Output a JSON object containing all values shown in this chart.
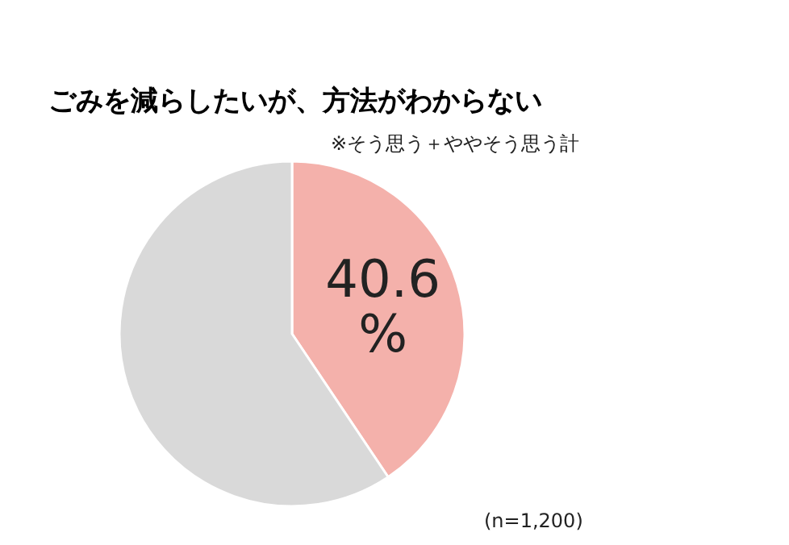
{
  "chart_data": {
    "type": "pie",
    "title": "ごみを減らしたいが、方法がわからない",
    "subtitle": "※そう思う＋ややそう思う計",
    "categories": [
      null,
      null
    ],
    "values": [
      40.6,
      59.4
    ],
    "colors": [
      "#f4b1ab",
      "#d9d9d9"
    ],
    "value_labels": [
      "40.6\n%",
      null
    ],
    "annotations": [
      "(n=1,200)"
    ]
  }
}
